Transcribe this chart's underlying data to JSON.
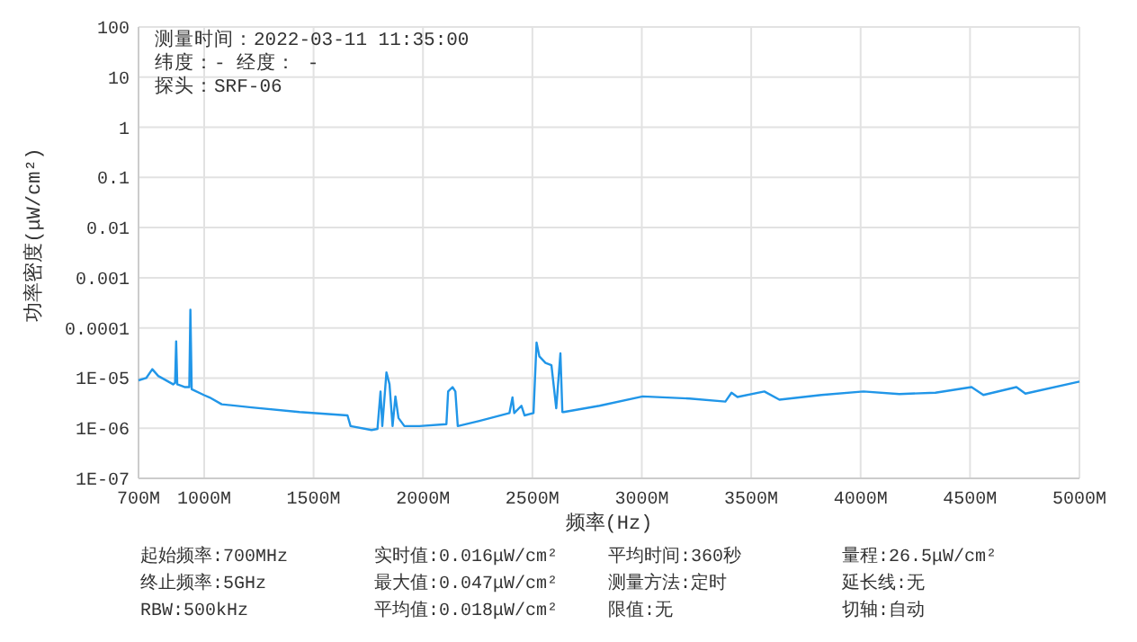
{
  "chart_data": {
    "type": "line",
    "xlabel": "频率(Hz)",
    "ylabel": "功率密度(μW/cm²)",
    "log": "y",
    "grid": true,
    "marker": "none",
    "line_style": "solid",
    "xlim": [
      700,
      5000
    ],
    "xticks": [
      {
        "value": 700,
        "label": "700M"
      },
      {
        "value": 1000,
        "label": "1000M"
      },
      {
        "value": 1500,
        "label": "1500M"
      },
      {
        "value": 2000,
        "label": "2000M"
      },
      {
        "value": 2500,
        "label": "2500M"
      },
      {
        "value": 3000,
        "label": "3000M"
      },
      {
        "value": 3500,
        "label": "3500M"
      },
      {
        "value": 4000,
        "label": "4000M"
      },
      {
        "value": 4500,
        "label": "4500M"
      },
      {
        "value": 5000,
        "label": "5000M"
      }
    ],
    "ylim": [
      1e-07,
      100
    ],
    "yticks": [
      {
        "value": 1e-07,
        "label": "1E-07"
      },
      {
        "value": 1e-06,
        "label": "1E-06"
      },
      {
        "value": 1e-05,
        "label": "1E-05"
      },
      0.0001,
      0.001,
      0.01,
      0.1,
      1,
      10,
      100
    ],
    "annotations": [
      "测量时间：2022-03-11 11:35:00",
      "纬度：- 经度： -",
      "探头：SRF-06",
      "起始频率:700MHz",
      "实时值:0.016μW/cm²",
      "平均时间:360秒",
      "量程:26.5μW/cm²",
      "终止频率:5GHz",
      "最大值:0.047μW/cm²",
      "测量方法:定时",
      "延长线:无",
      "RBW:500kHz",
      "平均值:0.018μW/cm²",
      "限值:无",
      "切轴:自动"
    ],
    "series": [
      {
        "color": "#2196e8",
        "x": [
          700,
          735,
          763,
          790,
          858,
          867,
          872,
          877,
          913,
          932,
          937,
          943,
          998,
          1025,
          1080,
          1217,
          1436,
          1655,
          1669,
          1765,
          1792,
          1806,
          1814,
          1833,
          1847,
          1861,
          1874,
          1888,
          1915,
          1984,
          2107,
          2115,
          2135,
          2148,
          2159,
          2258,
          2395,
          2409,
          2417,
          2450,
          2464,
          2505,
          2519,
          2532,
          2560,
          2587,
          2609,
          2628,
          2637,
          2643,
          2807,
          3004,
          3218,
          3382,
          3410,
          3437,
          3560,
          3629,
          3821,
          4013,
          4177,
          4342,
          4507,
          4561,
          4712,
          4753,
          5000
        ],
        "values": [
          9e-06,
          1e-05,
          1.5e-05,
          1.1e-05,
          7.5e-06,
          8e-06,
          5.4e-05,
          7.5e-06,
          6.6e-06,
          6.6e-06,
          0.00023,
          6e-06,
          4.6e-06,
          4.1e-06,
          3e-06,
          2.6e-06,
          2.1e-06,
          1.8e-06,
          1.1e-06,
          9.2e-07,
          9.7e-07,
          5.4e-06,
          1.1e-06,
          1.3e-05,
          7.5e-06,
          1.1e-06,
          4.3e-06,
          1.6e-06,
          1.1e-06,
          1.1e-06,
          1.2e-06,
          5.4e-06,
          6.6e-06,
          5.4e-06,
          1.1e-06,
          1.4e-06,
          2e-06,
          4.1e-06,
          2e-06,
          2.8e-06,
          1.8e-06,
          2e-06,
          5.1e-05,
          2.7e-05,
          2e-05,
          1.8e-05,
          2.5e-06,
          3.1e-05,
          2.1e-06,
          2.1e-06,
          2.8e-06,
          4.3e-06,
          3.9e-06,
          3.4e-06,
          5.1e-06,
          4.2e-06,
          5.4e-06,
          3.7e-06,
          4.6e-06,
          5.4e-06,
          4.8e-06,
          5.1e-06,
          6.6e-06,
          4.6e-06,
          6.6e-06,
          4.9e-06,
          8.5e-06
        ]
      }
    ]
  }
}
